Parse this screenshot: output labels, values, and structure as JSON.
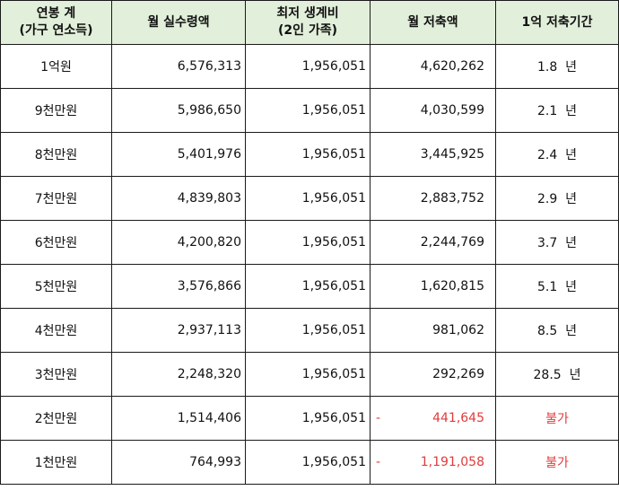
{
  "table": {
    "headers": [
      [
        "연봉 계",
        "(가구 연소득)"
      ],
      [
        "월 실수령액"
      ],
      [
        "최저 생계비",
        "(2인 가족)"
      ],
      [
        "월 저축액"
      ],
      [
        "1억 저축기간"
      ]
    ],
    "rows": [
      {
        "income": "1억원",
        "net": "6,576,313",
        "living": "1,956,051",
        "saving": "4,620,262",
        "negative": false,
        "period": "1.8  년",
        "impossible": false
      },
      {
        "income": "9천만원",
        "net": "5,986,650",
        "living": "1,956,051",
        "saving": "4,030,599",
        "negative": false,
        "period": "2.1  년",
        "impossible": false
      },
      {
        "income": "8천만원",
        "net": "5,401,976",
        "living": "1,956,051",
        "saving": "3,445,925",
        "negative": false,
        "period": "2.4  년",
        "impossible": false
      },
      {
        "income": "7천만원",
        "net": "4,839,803",
        "living": "1,956,051",
        "saving": "2,883,752",
        "negative": false,
        "period": "2.9  년",
        "impossible": false
      },
      {
        "income": "6천만원",
        "net": "4,200,820",
        "living": "1,956,051",
        "saving": "2,244,769",
        "negative": false,
        "period": "3.7  년",
        "impossible": false
      },
      {
        "income": "5천만원",
        "net": "3,576,866",
        "living": "1,956,051",
        "saving": "1,620,815",
        "negative": false,
        "period": "5.1  년",
        "impossible": false
      },
      {
        "income": "4천만원",
        "net": "2,937,113",
        "living": "1,956,051",
        "saving": "981,062",
        "negative": false,
        "period": "8.5  년",
        "impossible": false
      },
      {
        "income": "3천만원",
        "net": "2,248,320",
        "living": "1,956,051",
        "saving": "292,269",
        "negative": false,
        "period": "28.5  년",
        "impossible": false
      },
      {
        "income": "2천만원",
        "net": "1,514,406",
        "living": "1,956,051",
        "saving": "441,645",
        "negative": true,
        "period": "불가",
        "impossible": true
      },
      {
        "income": "1천만원",
        "net": "764,993",
        "living": "1,956,051",
        "saving": "1,191,058",
        "negative": true,
        "period": "불가",
        "impossible": true
      }
    ],
    "minus_sign": "-",
    "colors": {
      "header_bg": "#e2efda",
      "negative": "#e03b3b",
      "border": "#1a1a1a"
    }
  }
}
